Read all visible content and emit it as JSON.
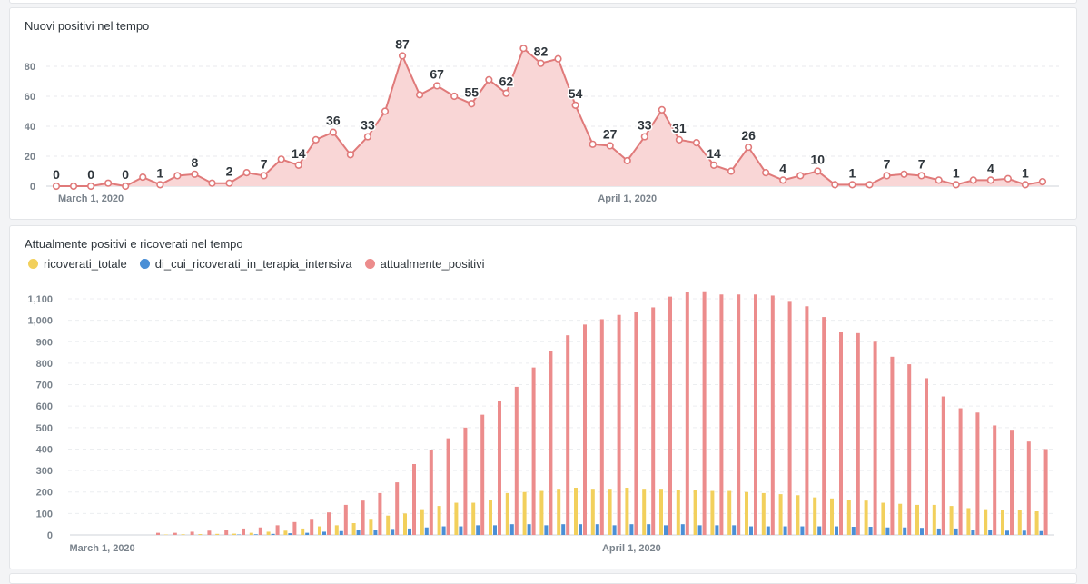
{
  "chart_data": [
    {
      "type": "line",
      "title": "Nuovi positivi nel tempo",
      "xlabel": "",
      "ylabel": "",
      "ylim": [
        0,
        95
      ],
      "yticks": [
        0,
        20,
        40,
        60,
        80
      ],
      "x_ticks": [
        {
          "index": 2,
          "label": "March 1, 2020"
        },
        {
          "index": 33,
          "label": "April 1, 2020"
        }
      ],
      "grid": true,
      "color": "#e07a7a",
      "fill": "#f9d6d6",
      "values": [
        0,
        0,
        0,
        2,
        0,
        6,
        1,
        7,
        8,
        2,
        2,
        9,
        7,
        18,
        14,
        31,
        36,
        21,
        33,
        50,
        87,
        61,
        67,
        60,
        55,
        71,
        62,
        92,
        82,
        85,
        54,
        28,
        27,
        17,
        33,
        51,
        31,
        29,
        14,
        10,
        26,
        9,
        4,
        7,
        10,
        1,
        1,
        1,
        7,
        8,
        7,
        4,
        1,
        4,
        4,
        5,
        1,
        3
      ],
      "label_every": 2
    },
    {
      "type": "bar",
      "title": "Attualmente positivi e ricoverati nel tempo",
      "xlabel": "",
      "ylabel": "",
      "ylim": [
        0,
        1100
      ],
      "yticks": [
        "0",
        "100",
        "200",
        "300",
        "400",
        "500",
        "600",
        "700",
        "800",
        "900",
        "1,000",
        "1,100"
      ],
      "x_ticks": [
        {
          "index": 2,
          "label": "March 1, 2020"
        },
        {
          "index": 33,
          "label": "April 1, 2020"
        }
      ],
      "grid": true,
      "legend_position": "top-left",
      "series": [
        {
          "name": "ricoverati_totale",
          "color": "#f2d05c",
          "values": [
            0,
            0,
            0,
            0,
            0,
            0,
            2,
            3,
            4,
            5,
            6,
            10,
            15,
            20,
            30,
            40,
            45,
            55,
            75,
            90,
            100,
            120,
            135,
            150,
            150,
            165,
            195,
            200,
            205,
            215,
            220,
            215,
            215,
            220,
            215,
            215,
            210,
            210,
            205,
            205,
            200,
            195,
            190,
            185,
            175,
            170,
            165,
            160,
            150,
            145,
            140,
            140,
            135,
            125,
            120,
            115,
            115,
            110
          ]
        },
        {
          "name": "di_cui_ricoverati_in_terapia_intensiva",
          "color": "#4a8fd6",
          "values": [
            0,
            0,
            0,
            0,
            0,
            0,
            0,
            0,
            0,
            0,
            2,
            3,
            5,
            8,
            10,
            15,
            18,
            22,
            25,
            28,
            30,
            35,
            40,
            40,
            45,
            45,
            50,
            50,
            45,
            50,
            50,
            50,
            45,
            50,
            50,
            45,
            50,
            45,
            45,
            45,
            40,
            40,
            40,
            40,
            40,
            40,
            38,
            38,
            35,
            35,
            33,
            30,
            30,
            25,
            22,
            20,
            20,
            18
          ]
        },
        {
          "name": "attualmente_positivi",
          "color": "#ec8c8c",
          "values": [
            0,
            0,
            0,
            0,
            0,
            10,
            10,
            15,
            20,
            25,
            30,
            35,
            45,
            60,
            75,
            105,
            140,
            160,
            195,
            245,
            330,
            395,
            450,
            500,
            560,
            625,
            690,
            780,
            855,
            930,
            980,
            1005,
            1025,
            1040,
            1060,
            1110,
            1130,
            1135,
            1120,
            1120,
            1120,
            1115,
            1090,
            1065,
            1015,
            945,
            940,
            900,
            830,
            795,
            730,
            645,
            590,
            570,
            510,
            490,
            435,
            400
          ]
        }
      ]
    }
  ]
}
